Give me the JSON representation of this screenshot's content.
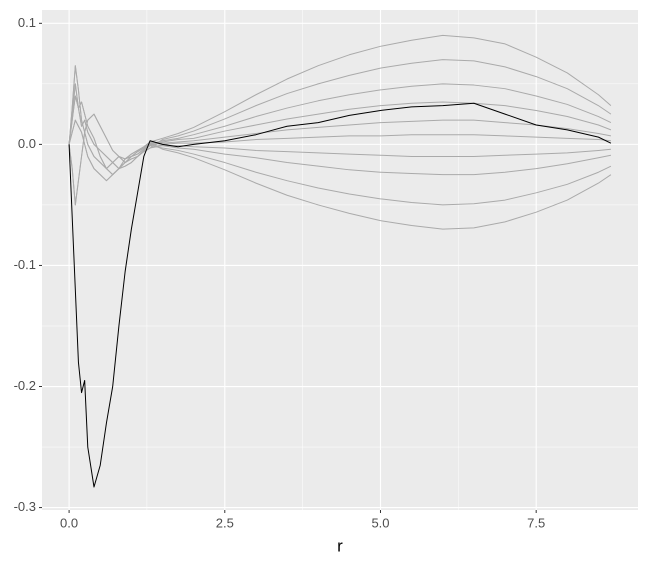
{
  "chart_data": {
    "type": "line",
    "x_label": "r",
    "x": [
      0,
      0.05,
      0.1,
      0.15,
      0.2,
      0.25,
      0.3,
      0.4,
      0.5,
      0.6,
      0.7,
      0.8,
      0.9,
      1,
      1.1,
      1.2,
      1.3,
      1.5,
      1.75,
      2,
      2.5,
      3,
      3.5,
      4,
      4.5,
      5,
      5.5,
      6,
      6.5,
      7,
      7.5,
      8,
      8.5,
      8.7
    ],
    "xlim": [
      -0.435,
      9.135
    ],
    "xticks": [
      {
        "value": 0,
        "label": "0.0"
      },
      2.5,
      {
        "value": 5,
        "label": "5.0"
      },
      7.5
    ],
    "ylim": [
      -0.302,
      0.111
    ],
    "yticks": [
      -0.3,
      -0.2,
      -0.1,
      {
        "value": 0,
        "label": "0.0"
      },
      0.1
    ],
    "grid": true,
    "series": [
      {
        "color": "#aaaaaa",
        "values": [
          0,
          0.03,
          0.065,
          0.045,
          0.02,
          0.01,
          0,
          -0.01,
          -0.015,
          -0.02,
          -0.015,
          -0.01,
          -0.012,
          -0.008,
          -0.005,
          -0.002,
          0.002,
          0.005,
          0.009,
          0.014,
          0.027,
          0.041,
          0.054,
          0.065,
          0.074,
          0.081,
          0.086,
          0.09,
          0.088,
          0.083,
          0.072,
          0.059,
          0.041,
          0.032
        ]
      },
      {
        "color": "#aaaaaa",
        "values": [
          0,
          -0.02,
          -0.05,
          -0.03,
          -0.01,
          0.01,
          0.02,
          0.025,
          0.015,
          0.005,
          -0.005,
          -0.01,
          -0.015,
          -0.012,
          -0.01,
          -0.006,
          -0.003,
          0.004,
          0.007,
          0.011,
          0.021,
          0.032,
          0.042,
          0.05,
          0.057,
          0.063,
          0.067,
          0.07,
          0.069,
          0.064,
          0.056,
          0.046,
          0.032,
          0.025
        ]
      },
      {
        "color": "#aaaaaa",
        "values": [
          0,
          0.02,
          0.04,
          0.03,
          0.035,
          0.025,
          0.015,
          0.005,
          -0.01,
          -0.02,
          -0.025,
          -0.02,
          -0.015,
          -0.01,
          -0.008,
          -0.004,
          0,
          0.003,
          0.005,
          0.008,
          0.015,
          0.023,
          0.03,
          0.036,
          0.041,
          0.045,
          0.048,
          0.05,
          0.049,
          0.046,
          0.04,
          0.033,
          0.023,
          0.018
        ]
      },
      {
        "color": "#aaaaaa",
        "values": [
          0,
          0.01,
          0.02,
          0.015,
          0.01,
          0,
          -0.01,
          -0.02,
          -0.025,
          -0.03,
          -0.025,
          -0.02,
          -0.018,
          -0.015,
          -0.01,
          -0.005,
          -0.001,
          0.002,
          0.004,
          0.005,
          0.011,
          0.016,
          0.021,
          0.025,
          0.029,
          0.032,
          0.034,
          0.035,
          0.034,
          0.032,
          0.028,
          0.023,
          0.016,
          0.012
        ]
      },
      {
        "color": "#aaaaaa",
        "values": [
          0,
          0.025,
          0.05,
          0.03,
          0.015,
          0.02,
          0.01,
          0,
          -0.005,
          -0.01,
          -0.015,
          -0.02,
          -0.012,
          -0.01,
          -0.006,
          -0.003,
          0.001,
          0.001,
          0.002,
          0.003,
          0.006,
          0.009,
          0.012,
          0.014,
          0.016,
          0.018,
          0.019,
          0.02,
          0.02,
          0.018,
          0.016,
          0.013,
          0.009,
          0.007
        ]
      },
      {
        "color": "#aaaaaa",
        "values": [
          0,
          0.03,
          0.065,
          0.045,
          0.02,
          0.01,
          0,
          -0.01,
          -0.015,
          -0.02,
          -0.015,
          -0.01,
          -0.012,
          -0.008,
          -0.005,
          -0.002,
          0.002,
          0,
          0.001,
          0.001,
          0.002,
          0.004,
          0.005,
          0.006,
          0.007,
          0.007,
          0.008,
          0.008,
          0.008,
          0.007,
          0.006,
          0.005,
          0.004,
          0.003
        ]
      },
      {
        "color": "#aaaaaa",
        "values": [
          0,
          -0.02,
          -0.05,
          -0.03,
          -0.01,
          0.01,
          0.02,
          0.025,
          0.015,
          0.005,
          -0.005,
          -0.01,
          -0.015,
          -0.012,
          -0.01,
          -0.006,
          -0.003,
          -0.001,
          -0.001,
          -0.002,
          -0.003,
          -0.005,
          -0.006,
          -0.007,
          -0.008,
          -0.009,
          -0.01,
          -0.01,
          -0.01,
          -0.009,
          -0.008,
          -0.007,
          -0.005,
          -0.004
        ]
      },
      {
        "color": "#aaaaaa",
        "values": [
          0,
          0.02,
          0.04,
          0.03,
          0.035,
          0.025,
          0.015,
          0.005,
          -0.01,
          -0.02,
          -0.025,
          -0.02,
          -0.015,
          -0.01,
          -0.008,
          -0.004,
          0,
          -0.001,
          -0.003,
          -0.004,
          -0.008,
          -0.011,
          -0.015,
          -0.018,
          -0.021,
          -0.023,
          -0.024,
          -0.025,
          -0.025,
          -0.023,
          -0.02,
          -0.016,
          -0.011,
          -0.009
        ]
      },
      {
        "color": "#aaaaaa",
        "values": [
          0,
          0.01,
          0.02,
          0.015,
          0.01,
          0,
          -0.01,
          -0.02,
          -0.025,
          -0.03,
          -0.025,
          -0.02,
          -0.018,
          -0.015,
          -0.01,
          -0.005,
          -0.001,
          -0.003,
          -0.005,
          -0.008,
          -0.015,
          -0.023,
          -0.03,
          -0.036,
          -0.041,
          -0.045,
          -0.048,
          -0.05,
          -0.049,
          -0.046,
          -0.04,
          -0.033,
          -0.023,
          -0.018
        ]
      },
      {
        "color": "#aaaaaa",
        "values": [
          0,
          0.025,
          0.05,
          0.03,
          0.015,
          0.02,
          0.01,
          0,
          -0.005,
          -0.01,
          -0.015,
          -0.02,
          -0.012,
          -0.01,
          -0.006,
          -0.003,
          0.001,
          -0.004,
          -0.007,
          -0.011,
          -0.021,
          -0.032,
          -0.042,
          -0.05,
          -0.057,
          -0.063,
          -0.067,
          -0.07,
          -0.069,
          -0.064,
          -0.056,
          -0.046,
          -0.032,
          -0.025
        ]
      },
      {
        "color": "#000000",
        "values": [
          0,
          -0.06,
          -0.12,
          -0.18,
          -0.205,
          -0.195,
          -0.25,
          -0.283,
          -0.265,
          -0.23,
          -0.2,
          -0.15,
          -0.105,
          -0.07,
          -0.04,
          -0.01,
          0.003,
          0,
          -0.002,
          0,
          0.003,
          0.008,
          0.015,
          0.018,
          0.024,
          0.028,
          0.031,
          0.032,
          0.034,
          0.025,
          0.016,
          0.012,
          0.006,
          0.001
        ]
      }
    ]
  }
}
